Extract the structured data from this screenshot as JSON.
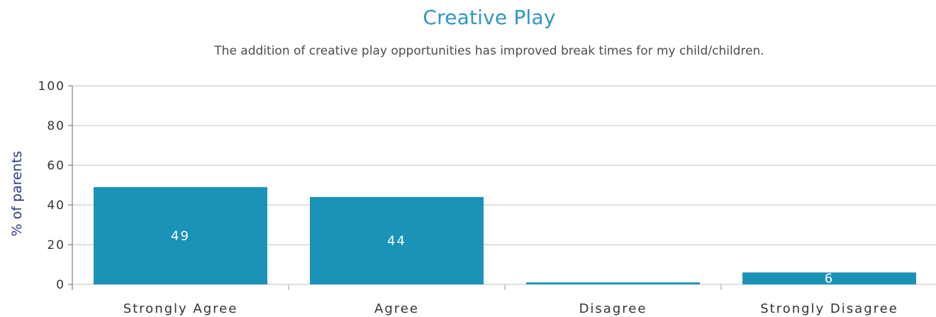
{
  "chart_data": {
    "type": "bar",
    "title": "Creative Play",
    "subtitle": "The addition of creative play opportunities has improved break times for my child/children.",
    "xlabel": "",
    "ylabel": "% of parents",
    "categories": [
      "Strongly Agree",
      "Agree",
      "Disagree",
      "Strongly Disagree"
    ],
    "values": [
      49,
      44,
      1,
      6
    ],
    "data_labels": [
      "49",
      "44",
      "",
      "6"
    ],
    "ylim": [
      0,
      100
    ],
    "yticks": [
      "0",
      "20",
      "40",
      "60",
      "80",
      "100"
    ],
    "grid": true,
    "legend": "none",
    "colors": {
      "bar": "#1b92b8",
      "title": "#2f97c0",
      "axis_title": "#2b3a8c",
      "grid": "#d6d6d6",
      "text": "#333333"
    }
  }
}
